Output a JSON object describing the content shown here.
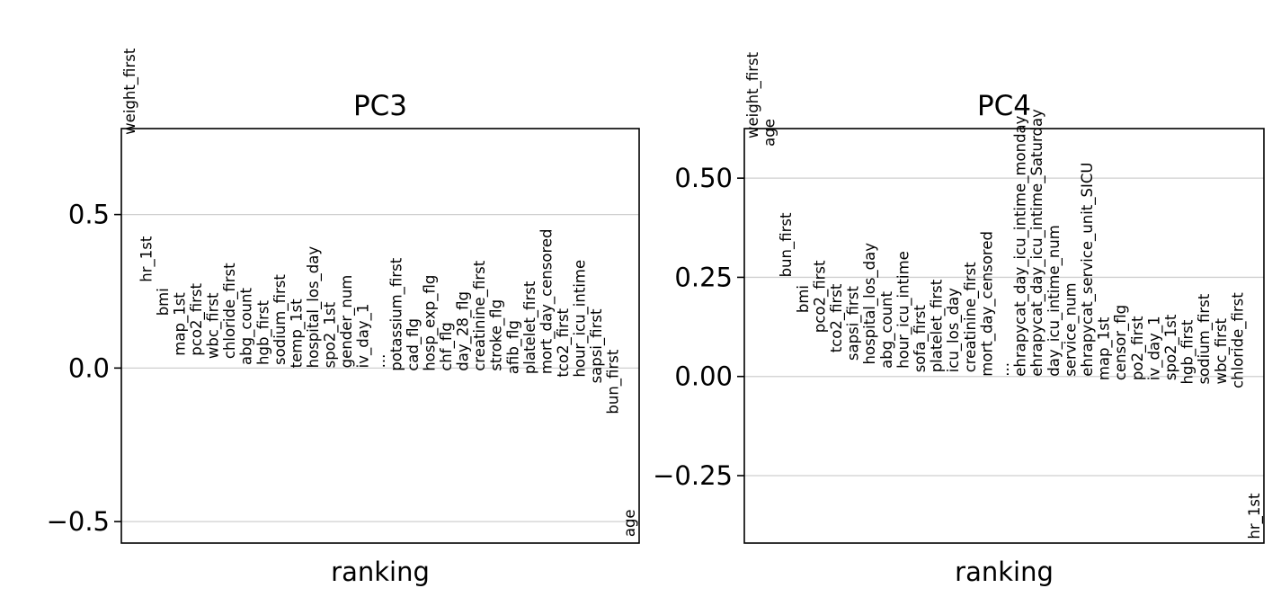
{
  "chart_data": [
    {
      "type": "scatter",
      "title": "PC3",
      "xlabel": "ranking",
      "ylabel": "",
      "ylim": [
        -0.57,
        0.78
      ],
      "yticks": [
        -0.5,
        0.0,
        0.5
      ],
      "ytick_labels": [
        "−0.5",
        "0.0",
        "0.5"
      ],
      "grid": true,
      "points": [
        {
          "rank": 0,
          "label": "weight_first",
          "value": 0.76
        },
        {
          "rank": 1,
          "label": "hr_1st",
          "value": 0.28
        },
        {
          "rank": 2,
          "label": "bmi",
          "value": 0.17
        },
        {
          "rank": 3,
          "label": "map_1st",
          "value": 0.04
        },
        {
          "rank": 4,
          "label": "pco2_first",
          "value": 0.04
        },
        {
          "rank": 5,
          "label": "wbc_first",
          "value": 0.03
        },
        {
          "rank": 6,
          "label": "chloride_first",
          "value": 0.03
        },
        {
          "rank": 7,
          "label": "abg_count",
          "value": 0.01
        },
        {
          "rank": 8,
          "label": "hgb_first",
          "value": 0.01
        },
        {
          "rank": 9,
          "label": "sodium_first",
          "value": 0.01
        },
        {
          "rank": 10,
          "label": "temp_1st",
          "value": 0.0
        },
        {
          "rank": 11,
          "label": "hospital_los_day",
          "value": 0.0
        },
        {
          "rank": 12,
          "label": "spo2_1st",
          "value": 0.0
        },
        {
          "rank": 13,
          "label": "gender_num",
          "value": 0.0
        },
        {
          "rank": 14,
          "label": "iv_day_1",
          "value": 0.0
        },
        {
          "rank": 15,
          "label": "...",
          "value": 0.0
        },
        {
          "rank": 16,
          "label": "potassium_first",
          "value": -0.01
        },
        {
          "rank": 17,
          "label": "cad_flg",
          "value": -0.01
        },
        {
          "rank": 18,
          "label": "hosp_exp_flg",
          "value": -0.01
        },
        {
          "rank": 19,
          "label": "chf_flg",
          "value": -0.01
        },
        {
          "rank": 20,
          "label": "day_28_flg",
          "value": -0.01
        },
        {
          "rank": 21,
          "label": "creatinine_first",
          "value": -0.01
        },
        {
          "rank": 22,
          "label": "stroke_flg",
          "value": -0.01
        },
        {
          "rank": 23,
          "label": "afib_flg",
          "value": -0.02
        },
        {
          "rank": 24,
          "label": "platelet_first",
          "value": -0.02
        },
        {
          "rank": 25,
          "label": "mort_day_censored",
          "value": -0.02
        },
        {
          "rank": 26,
          "label": "tco2_first",
          "value": -0.03
        },
        {
          "rank": 27,
          "label": "hour_icu_intime",
          "value": -0.03
        },
        {
          "rank": 28,
          "label": "sapsi_first",
          "value": -0.05
        },
        {
          "rank": 29,
          "label": "bun_first",
          "value": -0.15
        },
        {
          "rank": 30,
          "label": "age",
          "value": -0.55
        }
      ]
    },
    {
      "type": "scatter",
      "title": "PC4",
      "xlabel": "ranking",
      "ylabel": "",
      "ylim": [
        -0.42,
        0.625
      ],
      "yticks": [
        -0.25,
        0.0,
        0.25,
        0.5
      ],
      "ytick_labels": [
        "−0.25",
        "0.00",
        "0.25",
        "0.50"
      ],
      "grid": true,
      "points": [
        {
          "rank": 0,
          "label": "weight_first",
          "value": 0.6
        },
        {
          "rank": 1,
          "label": "age",
          "value": 0.58
        },
        {
          "rank": 2,
          "label": "bun_first",
          "value": 0.25
        },
        {
          "rank": 3,
          "label": "bmi",
          "value": 0.16
        },
        {
          "rank": 4,
          "label": "pco2_first",
          "value": 0.11
        },
        {
          "rank": 5,
          "label": "tco2_first",
          "value": 0.06
        },
        {
          "rank": 6,
          "label": "sapsi_first",
          "value": 0.04
        },
        {
          "rank": 7,
          "label": "hospital_los_day",
          "value": 0.03
        },
        {
          "rank": 8,
          "label": "abg_count",
          "value": 0.02
        },
        {
          "rank": 9,
          "label": "hour_icu_intime",
          "value": 0.02
        },
        {
          "rank": 10,
          "label": "sofa_first",
          "value": 0.01
        },
        {
          "rank": 11,
          "label": "platelet_first",
          "value": 0.01
        },
        {
          "rank": 12,
          "label": "icu_los_day",
          "value": 0.01
        },
        {
          "rank": 13,
          "label": "creatinine_first",
          "value": 0.01
        },
        {
          "rank": 14,
          "label": "mort_day_censored",
          "value": 0.0
        },
        {
          "rank": 15,
          "label": "...",
          "value": 0.0
        },
        {
          "rank": 16,
          "label": "ehrapycat_day_icu_intime_monday",
          "value": 0.0
        },
        {
          "rank": 17,
          "label": "ehrapycat_day_icu_intime_Saturday",
          "value": 0.0
        },
        {
          "rank": 18,
          "label": "day_icu_intime_num",
          "value": 0.0
        },
        {
          "rank": 19,
          "label": "service_num",
          "value": 0.0
        },
        {
          "rank": 20,
          "label": "ehrapycat_service_unit_SICU",
          "value": 0.0
        },
        {
          "rank": 21,
          "label": "map_1st",
          "value": -0.01
        },
        {
          "rank": 22,
          "label": "censor_flg",
          "value": -0.01
        },
        {
          "rank": 23,
          "label": "po2_first",
          "value": -0.01
        },
        {
          "rank": 24,
          "label": "iv_day_1",
          "value": -0.01
        },
        {
          "rank": 25,
          "label": "spo2_1st",
          "value": -0.01
        },
        {
          "rank": 26,
          "label": "hgb_first",
          "value": -0.02
        },
        {
          "rank": 27,
          "label": "sodium_first",
          "value": -0.02
        },
        {
          "rank": 28,
          "label": "wbc_first",
          "value": -0.02
        },
        {
          "rank": 29,
          "label": "chloride_first",
          "value": -0.03
        },
        {
          "rank": 30,
          "label": "hr_1st",
          "value": -0.41
        }
      ]
    }
  ]
}
